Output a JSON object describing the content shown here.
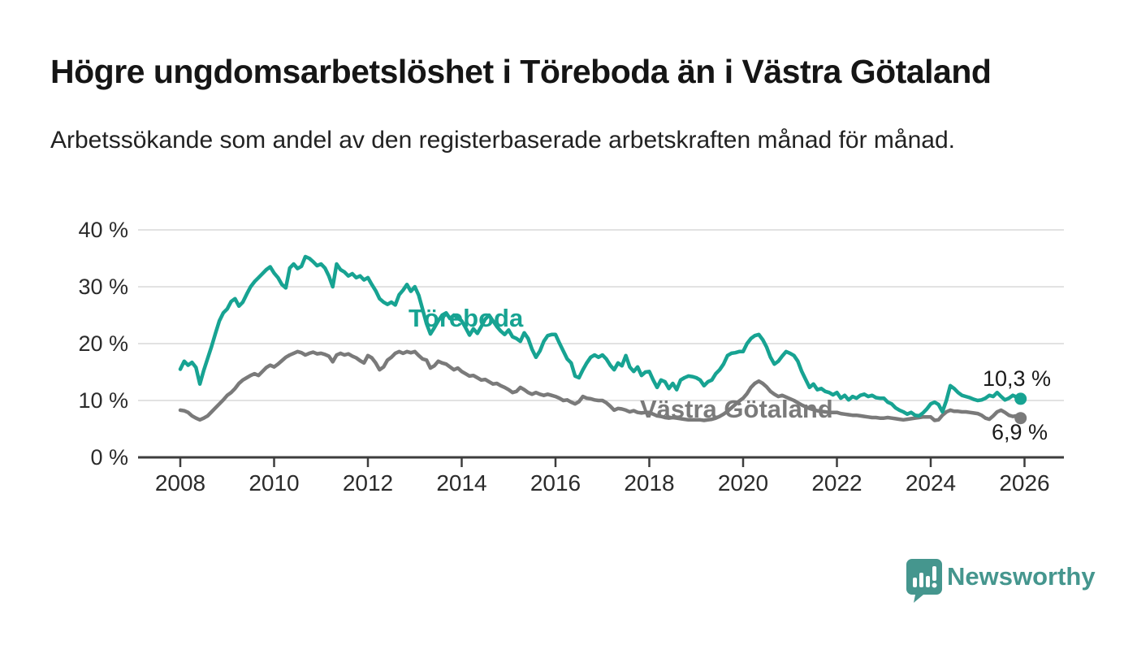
{
  "title": "Högre ungdomsarbetslöshet i Töreboda än i Västra Götaland",
  "subtitle": "Arbetssökande som andel av den registerbaserade arbetskraften månad för månad.",
  "footer": {
    "brand": "Newsworthy"
  },
  "colors": {
    "toreboda": "#17a392",
    "vastra_gotaland": "#7a7a7a",
    "gridline": "#d9d9d9",
    "axis": "#3d3d3d",
    "text": "#1a1a1a",
    "brand": "#45968e"
  },
  "chart_data": {
    "type": "line",
    "title": "Högre ungdomsarbetslöshet i Töreboda än i Västra Götaland",
    "xlabel": "",
    "ylabel": "",
    "ylim": [
      0,
      40
    ],
    "grid": true,
    "legend_position": "inline-labels",
    "x_start_year": 2008,
    "points_per_year": 12,
    "x_ticks": [
      "2008",
      "2010",
      "2012",
      "2014",
      "2016",
      "2018",
      "2020",
      "2022",
      "2024",
      "2026"
    ],
    "y_ticks": [
      "0 %",
      "10 %",
      "20 %",
      "30 %",
      "40 %"
    ],
    "series": [
      {
        "name": "Töreboda",
        "color": "#17a392",
        "end_label": "10,3 %",
        "end_value": 10.3,
        "values": [
          15.5,
          16.9,
          16.2,
          16.7,
          15.8,
          12.9,
          15.3,
          17.4,
          19.5,
          21.8,
          24.0,
          25.4,
          26.1,
          27.4,
          27.9,
          26.6,
          27.3,
          28.7,
          30.0,
          30.9,
          31.6,
          32.3,
          33.0,
          33.5,
          32.4,
          31.6,
          30.4,
          29.8,
          33.3,
          34.0,
          33.2,
          33.6,
          35.3,
          35.0,
          34.4,
          33.7,
          34.0,
          33.3,
          31.9,
          30.0,
          34.0,
          33.0,
          32.6,
          31.9,
          32.3,
          31.6,
          31.9,
          31.2,
          31.6,
          30.4,
          29.3,
          27.9,
          27.3,
          26.9,
          27.3,
          26.8,
          28.6,
          29.4,
          30.4,
          29.2,
          30.0,
          28.5,
          26.0,
          23.5,
          21.7,
          22.8,
          24.0,
          25.0,
          25.4,
          24.4,
          25.0,
          24.5,
          24.0,
          22.8,
          21.5,
          22.6,
          21.8,
          23.0,
          24.3,
          25.0,
          24.0,
          23.0,
          22.2,
          21.6,
          22.4,
          21.2,
          20.9,
          20.4,
          21.9,
          20.9,
          19.0,
          17.6,
          18.7,
          20.4,
          21.4,
          21.6,
          21.6,
          20.1,
          18.7,
          17.3,
          16.6,
          14.3,
          14.0,
          15.4,
          16.6,
          17.6,
          18.0,
          17.6,
          18.0,
          17.3,
          16.2,
          15.4,
          16.6,
          16.1,
          17.9,
          15.9,
          15.1,
          15.9,
          14.4,
          15.0,
          15.1,
          13.6,
          12.3,
          13.6,
          13.3,
          12.1,
          13.0,
          11.9,
          13.6,
          14.0,
          14.3,
          14.2,
          14.0,
          13.6,
          12.6,
          13.3,
          13.6,
          14.7,
          15.4,
          16.4,
          17.9,
          18.3,
          18.4,
          18.6,
          18.6,
          20.0,
          20.9,
          21.4,
          21.6,
          20.7,
          19.4,
          17.6,
          16.4,
          16.9,
          17.8,
          18.6,
          18.3,
          17.9,
          16.9,
          15.1,
          13.7,
          12.3,
          12.9,
          11.9,
          12.1,
          11.6,
          11.4,
          11.0,
          11.4,
          10.4,
          10.9,
          10.1,
          10.7,
          10.4,
          10.9,
          11.1,
          10.7,
          10.9,
          10.5,
          10.4,
          10.4,
          9.7,
          9.4,
          8.7,
          8.3,
          8.0,
          7.6,
          7.9,
          7.4,
          7.3,
          7.8,
          8.5,
          9.4,
          9.7,
          9.3,
          8.0,
          10.0,
          12.6,
          12.1,
          11.4,
          10.9,
          10.7,
          10.5,
          10.2,
          10.0,
          10.1,
          10.4,
          10.9,
          10.7,
          11.4,
          10.7,
          10.1,
          10.4,
          10.9,
          10.6,
          10.3
        ]
      },
      {
        "name": "Västra Götaland",
        "color": "#7a7a7a",
        "end_label": "6,9 %",
        "end_value": 6.9,
        "values": [
          8.3,
          8.2,
          7.9,
          7.3,
          6.9,
          6.6,
          6.9,
          7.3,
          8.0,
          8.7,
          9.4,
          10.1,
          10.9,
          11.4,
          12.1,
          13.0,
          13.6,
          14.0,
          14.4,
          14.7,
          14.4,
          15.1,
          15.8,
          16.2,
          15.9,
          16.4,
          17.0,
          17.6,
          18.0,
          18.3,
          18.6,
          18.4,
          18.0,
          18.3,
          18.5,
          18.2,
          18.3,
          18.1,
          17.8,
          16.8,
          18.0,
          18.3,
          18.0,
          18.2,
          17.8,
          17.5,
          17.0,
          16.6,
          17.9,
          17.5,
          16.6,
          15.4,
          15.9,
          17.1,
          17.6,
          18.3,
          18.6,
          18.3,
          18.6,
          18.4,
          18.6,
          17.9,
          17.3,
          17.1,
          15.7,
          16.1,
          16.9,
          16.6,
          16.4,
          15.9,
          15.4,
          15.7,
          15.1,
          14.7,
          14.3,
          14.4,
          14.0,
          13.6,
          13.7,
          13.3,
          12.9,
          13.0,
          12.6,
          12.3,
          11.9,
          11.4,
          11.6,
          12.3,
          11.9,
          11.4,
          11.1,
          11.4,
          11.1,
          10.9,
          11.1,
          10.9,
          10.7,
          10.4,
          10.0,
          10.1,
          9.7,
          9.4,
          9.8,
          10.7,
          10.4,
          10.3,
          10.1,
          10.0,
          10.0,
          9.6,
          9.0,
          8.3,
          8.6,
          8.5,
          8.3,
          8.0,
          8.2,
          7.9,
          7.8,
          7.9,
          7.9,
          7.6,
          7.3,
          7.2,
          7.0,
          6.9,
          7.0,
          6.9,
          6.8,
          6.7,
          6.6,
          6.6,
          6.6,
          6.6,
          6.5,
          6.6,
          6.7,
          6.9,
          7.2,
          7.6,
          8.1,
          8.7,
          9.3,
          9.9,
          10.4,
          11.2,
          12.3,
          13.0,
          13.4,
          13.0,
          12.4,
          11.6,
          11.1,
          10.7,
          10.9,
          10.6,
          10.3,
          10.0,
          9.6,
          9.2,
          8.9,
          8.6,
          8.4,
          8.2,
          8.1,
          8.0,
          7.9,
          7.9,
          7.9,
          7.7,
          7.6,
          7.5,
          7.4,
          7.4,
          7.3,
          7.2,
          7.1,
          7.0,
          7.0,
          6.9,
          6.9,
          7.0,
          6.9,
          6.8,
          6.7,
          6.6,
          6.7,
          6.8,
          6.9,
          7.0,
          7.1,
          7.1,
          7.1,
          6.5,
          6.6,
          7.4,
          8.0,
          8.3,
          8.1,
          8.1,
          8.0,
          8.0,
          7.9,
          7.8,
          7.7,
          7.4,
          6.9,
          6.7,
          7.3,
          8.0,
          8.3,
          7.9,
          7.4,
          7.2,
          7.3,
          6.9
        ]
      }
    ]
  }
}
